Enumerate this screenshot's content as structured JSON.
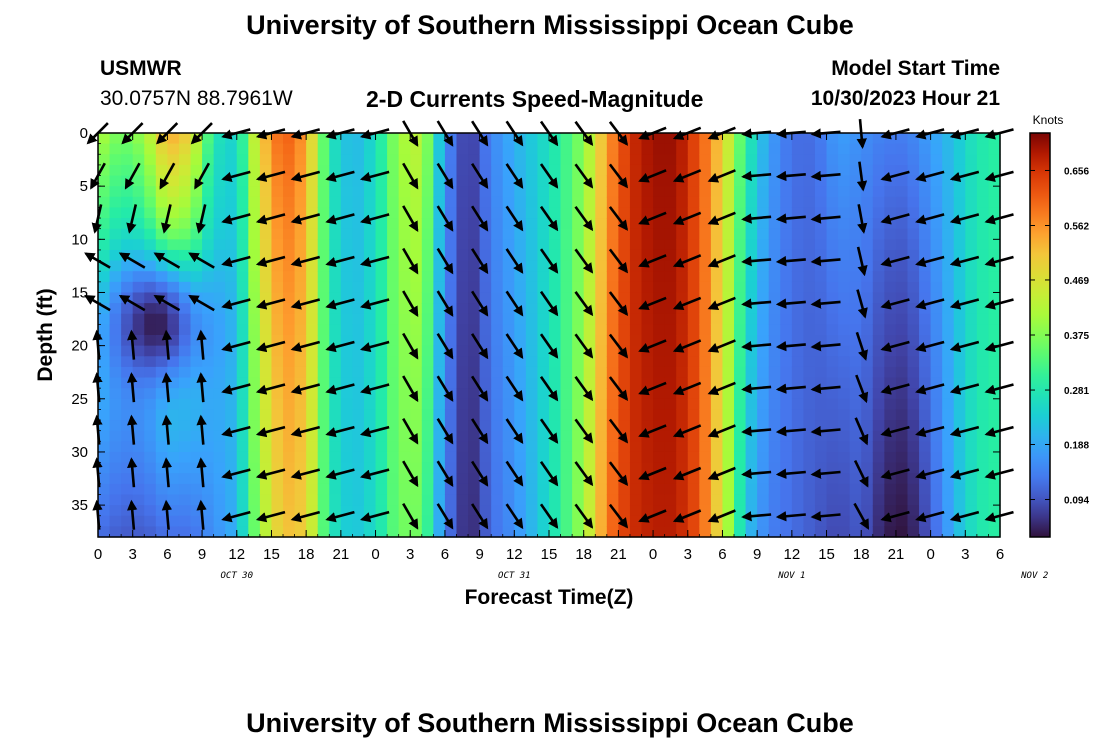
{
  "page": {
    "title_top": "University of Southern Mississippi Ocean Cube",
    "title_bottom": "University of Southern Mississippi Ocean Cube",
    "station": "USMWR",
    "location": "30.0757N  88.7961W",
    "plot_title": "2-D Currents Speed-Magnitude",
    "model_label": "Model Start Time",
    "model_time": "10/30/2023 Hour 21"
  },
  "chart_data": {
    "type": "heatmap",
    "title": "2-D Currents Speed-Magnitude",
    "xlabel": "Forecast Time(Z)",
    "ylabel": "Depth (ft)",
    "colorbar_unit": "Knots",
    "x_tick_labels": [
      "0",
      "3",
      "6",
      "9",
      "12",
      "15",
      "18",
      "21",
      "0",
      "3",
      "6",
      "9",
      "12",
      "15",
      "18",
      "21",
      "0",
      "3",
      "6",
      "9",
      "12",
      "15",
      "18",
      "21",
      "0",
      "3",
      "6"
    ],
    "date_labels": [
      {
        "label": "OCT 30",
        "hour": 12
      },
      {
        "label": "OCT 31",
        "hour": 36
      },
      {
        "label": "NOV 1",
        "hour": 60
      },
      {
        "label": "NOV 2",
        "hour": 81
      }
    ],
    "x_range_hours": [
      0,
      78
    ],
    "y_ticks": [
      0,
      5,
      10,
      15,
      20,
      25,
      30,
      35
    ],
    "y_range_ft": [
      0,
      38
    ],
    "colorbar_ticks": [
      "0.656",
      "0.562",
      "0.469",
      "0.375",
      "0.281",
      "0.188",
      "0.094"
    ],
    "colorbar_range": [
      0.03,
      0.72
    ],
    "speed_keyframes_hours": [
      0,
      2,
      4,
      6,
      8,
      10,
      12,
      14,
      16,
      18,
      20,
      22,
      24,
      26,
      28,
      30,
      32,
      34,
      36,
      38,
      40,
      42,
      44,
      46,
      48,
      50,
      52,
      54,
      56,
      58,
      60,
      62,
      64,
      66,
      68,
      70,
      72,
      74,
      76,
      78
    ],
    "speed_surface_knots": [
      0.42,
      0.36,
      0.4,
      0.55,
      0.5,
      0.28,
      0.24,
      0.5,
      0.62,
      0.55,
      0.28,
      0.2,
      0.26,
      0.4,
      0.44,
      0.16,
      0.06,
      0.15,
      0.2,
      0.24,
      0.3,
      0.38,
      0.55,
      0.66,
      0.7,
      0.7,
      0.62,
      0.5,
      0.3,
      0.18,
      0.12,
      0.12,
      0.18,
      0.16,
      0.14,
      0.14,
      0.18,
      0.22,
      0.28,
      0.3
    ],
    "speed_deep_knots": [
      0.12,
      0.1,
      0.1,
      0.12,
      0.12,
      0.16,
      0.2,
      0.4,
      0.52,
      0.5,
      0.28,
      0.22,
      0.26,
      0.36,
      0.36,
      0.14,
      0.04,
      0.12,
      0.16,
      0.22,
      0.3,
      0.4,
      0.58,
      0.66,
      0.68,
      0.68,
      0.62,
      0.46,
      0.22,
      0.14,
      0.12,
      0.1,
      0.08,
      0.1,
      0.04,
      0.03,
      0.1,
      0.2,
      0.28,
      0.3
    ],
    "low_speed_pocket": {
      "hour": 5,
      "depth_ft": 18,
      "speed_knots": 0.04
    },
    "arrow_rows_ft": [
      0,
      4,
      8,
      12,
      16,
      20,
      24,
      28,
      32,
      36
    ],
    "arrow_step_hours": 3
  }
}
